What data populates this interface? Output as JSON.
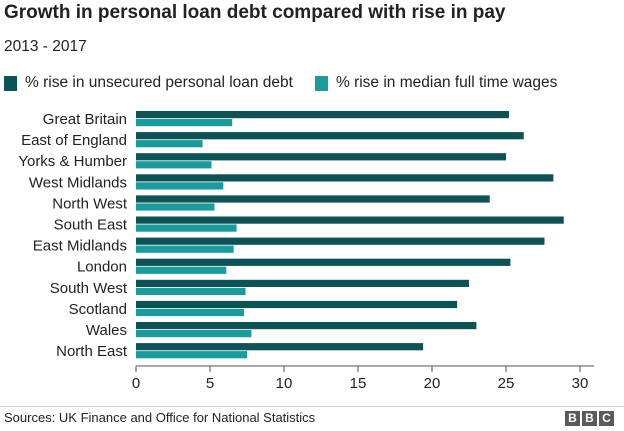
{
  "header": {
    "title": "Growth in personal loan debt compared with rise in pay",
    "subtitle": "2013 - 2017"
  },
  "colors": {
    "debt": "#0d5254",
    "wages": "#1a9c9c",
    "axis": "#444444",
    "grid": "#dddddd"
  },
  "chart_data": {
    "type": "bar",
    "orientation": "horizontal",
    "categories": [
      "Great Britain",
      "East of England",
      "Yorks & Humber",
      "West Midlands",
      "North West",
      "South East",
      "East Midlands",
      "London",
      "South West",
      "Scotland",
      "Wales",
      "North East"
    ],
    "series": [
      {
        "name": "% rise in unsecured personal loan debt",
        "values": [
          25.2,
          26.2,
          25.0,
          28.2,
          23.9,
          28.9,
          27.6,
          25.3,
          22.5,
          21.7,
          23.0,
          19.4
        ]
      },
      {
        "name": "% rise in median full time wages",
        "values": [
          6.5,
          4.5,
          5.1,
          5.9,
          5.3,
          6.8,
          6.6,
          6.1,
          7.4,
          7.3,
          7.8,
          7.5
        ]
      }
    ],
    "xlim": [
      0,
      30
    ],
    "xticks": [
      "0",
      "5",
      "10",
      "15",
      "20",
      "25",
      "30"
    ],
    "legend_position": "top-left",
    "grid": false
  },
  "footer": {
    "source": "Sources: UK Finance and Office for National Statistics",
    "logo": [
      "B",
      "B",
      "C"
    ]
  }
}
